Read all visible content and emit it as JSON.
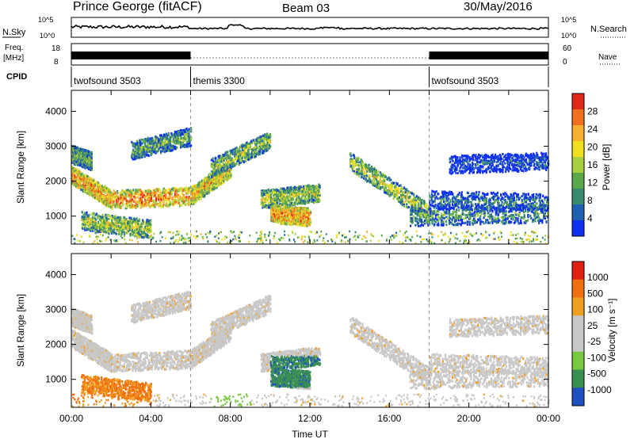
{
  "header": {
    "station": "Prince George (fitACF)",
    "beam": "Beam 03",
    "date": "30/May/2016"
  },
  "summary_panels": {
    "nsky_label": "N.Sky",
    "nsearch_label": "N.Search",
    "noise_ticks": [
      "10^5",
      "10^0"
    ],
    "freq_label": "Freq.",
    "freq_unit": "[MHz]",
    "freq_ticks": [
      "18",
      "8"
    ],
    "nave_label": "Nave",
    "nave_ticks": [
      "60",
      "0"
    ],
    "cpid_label": "CPID"
  },
  "cpid_segments": [
    {
      "label": "twofsound 3503",
      "start_hour": 0,
      "end_hour": 6
    },
    {
      "label": "themis 3300",
      "start_hour": 6,
      "end_hour": 18
    },
    {
      "label": "twofsound 3503",
      "start_hour": 18,
      "end_hour": 24
    }
  ],
  "chart_data": [
    {
      "type": "heatmap",
      "name": "power-panel",
      "ylabel": "Slant Range [km]",
      "ylim": [
        200,
        4600
      ],
      "yticks": [
        1000,
        2000,
        3000,
        4000
      ],
      "xlim": [
        0,
        24
      ],
      "colorbar_label": "Power [dB]",
      "colorbar_ticks": [
        "4",
        "8",
        "12",
        "16",
        "20",
        "24",
        "28"
      ],
      "colorbar_colors": [
        "#1030f0",
        "#2060b0",
        "#3a8a70",
        "#5aa84a",
        "#a8d040",
        "#f0e020",
        "#f8b030",
        "#f07020",
        "#e02818"
      ],
      "bands": [
        {
          "from": [
            0,
            2200
          ],
          "to": [
            2,
            1500
          ],
          "level": 0.75
        },
        {
          "from": [
            2,
            1500
          ],
          "to": [
            6,
            1600
          ],
          "level": 0.8
        },
        {
          "from": [
            6,
            1600
          ],
          "to": [
            8,
            2400
          ],
          "level": 0.7
        },
        {
          "from": [
            7,
            2400
          ],
          "to": [
            10,
            3200
          ],
          "level": 0.5
        },
        {
          "from": [
            0.5,
            900
          ],
          "to": [
            4,
            650
          ],
          "level": 0.55
        },
        {
          "from": [
            9.5,
            1500
          ],
          "to": [
            12.5,
            1700
          ],
          "level": 0.55
        },
        {
          "from": [
            10,
            1100
          ],
          "to": [
            12,
            1000
          ],
          "level": 0.8
        },
        {
          "from": [
            14,
            2600
          ],
          "to": [
            18,
            1100
          ],
          "level": 0.55
        },
        {
          "from": [
            17,
            1000
          ],
          "to": [
            24,
            1100
          ],
          "level": 0.35
        },
        {
          "from": [
            18,
            1500
          ],
          "to": [
            24,
            1400
          ],
          "level": 0.25
        },
        {
          "from": [
            0,
            2800
          ],
          "to": [
            1,
            2600
          ],
          "level": 0.45
        },
        {
          "from": [
            3,
            2900
          ],
          "to": [
            6,
            3300
          ],
          "level": 0.4
        },
        {
          "from": [
            19,
            2500
          ],
          "to": [
            24,
            2600
          ],
          "level": 0.15
        }
      ]
    },
    {
      "type": "heatmap",
      "name": "velocity-panel",
      "ylabel": "Slant Range [km]",
      "ylim": [
        200,
        4600
      ],
      "yticks": [
        1000,
        2000,
        3000,
        4000
      ],
      "xlim": [
        0,
        24
      ],
      "xticks": [
        "00:00",
        "04:00",
        "08:00",
        "12:00",
        "16:00",
        "20:00",
        "00:00"
      ],
      "xlabel": "Time UT",
      "colorbar_label": "Velocity [m s⁻¹]",
      "colorbar_ticks": [
        "1000",
        "500",
        "100",
        "25",
        "-25",
        "-100",
        "-500",
        "-1000"
      ],
      "colorbar_colors": [
        "#2050c0",
        "#3a9050",
        "#78c840",
        "#c8c8c8",
        "#c8c8c8",
        "#f0a020",
        "#f07010",
        "#e02010"
      ]
    }
  ]
}
